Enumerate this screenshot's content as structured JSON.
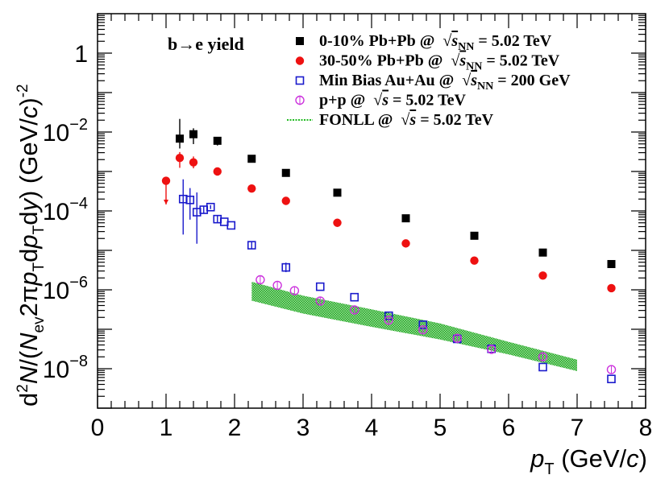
{
  "chart_data": {
    "type": "scatter",
    "title": "b→e yield",
    "xlabel": "p_T (GeV/c)",
    "ylabel": "d²N/(N_ev 2π p_T dp_T dy) (GeV/c)⁻²",
    "xlim": [
      0,
      8
    ],
    "ylim_log10": [
      -9,
      1
    ],
    "yscale": "log",
    "x_ticks": [
      "0",
      "1",
      "2",
      "3",
      "4",
      "5",
      "6",
      "7",
      "8"
    ],
    "y_ticks": [
      "10^-8",
      "10^-6",
      "10^-4",
      "10^-2",
      "1"
    ],
    "series": [
      {
        "name": "0-10% Pb+Pb @ √s_NN = 5.02 TeV",
        "marker": "filled-square",
        "color": "#000000",
        "points": [
          {
            "x": 1.2,
            "y": 0.0068,
            "err_up_dec": 0.5,
            "err_dn_dec": 0.25
          },
          {
            "x": 1.4,
            "y": 0.0088,
            "err_up_dec": 0.15,
            "err_dn_dec": 0.25
          },
          {
            "x": 1.75,
            "y": 0.006,
            "err_up_dec": 0.08,
            "err_dn_dec": 0.12
          },
          {
            "x": 2.25,
            "y": 0.0021
          },
          {
            "x": 2.75,
            "y": 0.00092
          },
          {
            "x": 3.5,
            "y": 0.00029
          },
          {
            "x": 4.5,
            "y": 6.5e-05
          },
          {
            "x": 5.5,
            "y": 2.35e-05
          },
          {
            "x": 6.5,
            "y": 8.8e-06
          },
          {
            "x": 7.5,
            "y": 4.5e-06
          }
        ]
      },
      {
        "name": "30-50% Pb+Pb @ √s_NN = 5.02 TeV",
        "marker": "filled-circle",
        "color": "#ee1111",
        "points": [
          {
            "x": 1.0,
            "y": 0.00058,
            "err_up_dec": 0.1,
            "err_dn_dec": 0.6
          },
          {
            "x": 1.2,
            "y": 0.0022,
            "err_up_dec": 0.15,
            "err_dn_dec": 0.25
          },
          {
            "x": 1.4,
            "y": 0.0017,
            "err_up_dec": 0.15,
            "err_dn_dec": 0.15
          },
          {
            "x": 1.75,
            "y": 0.001
          },
          {
            "x": 2.25,
            "y": 0.00037
          },
          {
            "x": 2.75,
            "y": 0.00018
          },
          {
            "x": 3.5,
            "y": 5e-05
          },
          {
            "x": 4.5,
            "y": 1.5e-05
          },
          {
            "x": 5.5,
            "y": 5.5e-06
          },
          {
            "x": 6.5,
            "y": 2.3e-06
          },
          {
            "x": 7.5,
            "y": 1.1e-06
          }
        ]
      },
      {
        "name": "Min Bias Au+Au @ √s_NN = 200 GeV",
        "marker": "open-square",
        "color": "#1a1acc",
        "points": [
          {
            "x": 1.25,
            "y": 0.0002,
            "err_up_dec": 0.5,
            "err_dn_dec": 0.9
          },
          {
            "x": 1.35,
            "y": 0.00019,
            "err_up_dec": 0.3,
            "err_dn_dec": 0.5
          },
          {
            "x": 1.45,
            "y": 9.3e-05,
            "err_up_dec": 0.5,
            "err_dn_dec": 0.8
          },
          {
            "x": 1.55,
            "y": 0.000107,
            "err_up_dec": 0.1,
            "err_dn_dec": 0.1
          },
          {
            "x": 1.65,
            "y": 0.000125,
            "err_up_dec": 0.05,
            "err_dn_dec": 0.05
          },
          {
            "x": 1.75,
            "y": 6.2e-05,
            "err_up_dec": 0.1,
            "err_dn_dec": 0.1
          },
          {
            "x": 1.85,
            "y": 5.3e-05
          },
          {
            "x": 1.95,
            "y": 4.3e-05
          },
          {
            "x": 2.25,
            "y": 1.35e-05,
            "err_up_dec": 0.1,
            "err_dn_dec": 0.1
          },
          {
            "x": 2.75,
            "y": 3.7e-06,
            "err_up_dec": 0.12,
            "err_dn_dec": 0.12
          },
          {
            "x": 3.25,
            "y": 1.2e-06
          },
          {
            "x": 3.75,
            "y": 6.5e-07
          },
          {
            "x": 4.25,
            "y": 2.2e-07
          },
          {
            "x": 4.75,
            "y": 1.3e-07
          },
          {
            "x": 5.25,
            "y": 5.7e-08
          },
          {
            "x": 5.75,
            "y": 3.2e-08
          },
          {
            "x": 6.5,
            "y": 1.1e-08
          },
          {
            "x": 7.5,
            "y": 5.5e-09
          }
        ]
      },
      {
        "name": "p+p @ √s = 5.02 TeV",
        "marker": "open-circle",
        "color": "#cc33dd",
        "points": [
          {
            "x": 2.375,
            "y": 1.8e-06
          },
          {
            "x": 2.625,
            "y": 1.3e-06
          },
          {
            "x": 2.875,
            "y": 9.5e-07
          },
          {
            "x": 3.25,
            "y": 5.2e-07
          },
          {
            "x": 3.75,
            "y": 3.1e-07
          },
          {
            "x": 4.25,
            "y": 1.7e-07
          },
          {
            "x": 4.75,
            "y": 9.7e-08
          },
          {
            "x": 5.25,
            "y": 5.9e-08
          },
          {
            "x": 5.75,
            "y": 3.1e-08
          },
          {
            "x": 6.5,
            "y": 2e-08
          },
          {
            "x": 7.5,
            "y": 9.5e-09
          }
        ]
      }
    ],
    "band": {
      "name": "FONLL @ √s = 5.02 TeV",
      "color": "#22bb22",
      "x": [
        2.25,
        3.0,
        4.0,
        5.0,
        6.0,
        7.0
      ],
      "low": [
        5.3e-07,
        2.5e-07,
        1.15e-07,
        5.5e-08,
        2.3e-08,
        8.7e-09
      ],
      "high": [
        1.6e-06,
        7.1e-07,
        3.2e-07,
        1.4e-07,
        4.8e-08,
        1.7e-08
      ]
    },
    "legend": {
      "placement": "top-right",
      "entries": [
        {
          "prefix": "0-10% Pb+Pb @",
          "root": "s",
          "sub": "NN",
          "suffix": "= 5.02 TeV"
        },
        {
          "prefix": "30-50% Pb+Pb @",
          "root": "s",
          "sub": "NN",
          "suffix": "= 5.02 TeV"
        },
        {
          "prefix": "Min Bias Au+Au @",
          "root": "s",
          "sub": "NN",
          "suffix": "= 200 GeV"
        },
        {
          "prefix": "p+p @",
          "root": "s",
          "sub": "",
          "suffix": "= 5.02 TeV"
        },
        {
          "prefix": "FONLL @",
          "root": "s",
          "sub": "",
          "suffix": "= 5.02 TeV"
        }
      ]
    }
  }
}
